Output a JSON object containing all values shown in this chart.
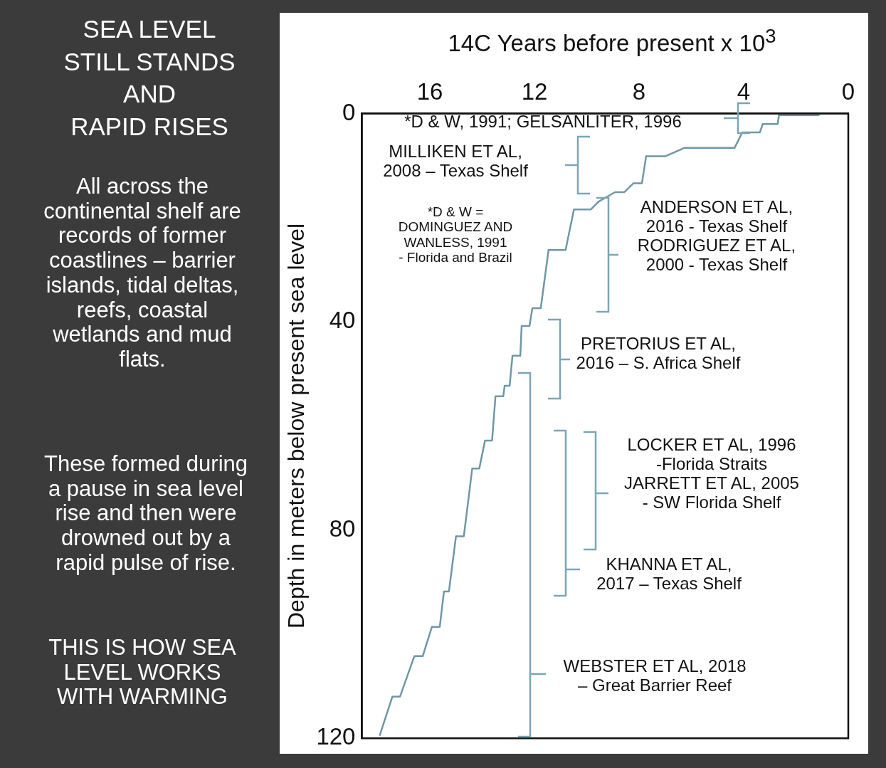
{
  "chart_data": {
    "type": "line",
    "title": "SEA LEVEL\nSTILL  STANDS\nAND\nRAPID  RISES",
    "xlabel": "14C Years before present x 10$^{3}$",
    "ylabel": "Depth in meters below present sea level",
    "x": [
      17.92,
      17.43,
      17.14,
      16.59,
      16.27,
      15.92,
      15.62,
      15.46,
      15.27,
      15.0,
      14.7,
      14.38,
      14.11,
      13.89,
      13.62,
      13.49,
      13.19,
      13.14,
      12.95,
      12.84,
      12.54,
      12.49,
      12.19,
      12.08,
      11.76,
      11.46,
      10.81,
      10.49,
      9.84,
      9.54,
      8.92,
      8.57,
      8.22,
      7.89,
      7.73,
      7.0,
      6.27,
      4.35,
      4.05,
      3.38,
      3.27,
      2.7,
      2.65,
      1.14,
      1.08,
      0
    ],
    "series": [
      {
        "color": "#6f97a6",
        "values": [
          119.5,
          112,
          112,
          104.2,
          104.2,
          98.6,
          98.6,
          91.8,
          91.8,
          81.2,
          81.2,
          68.2,
          68.2,
          62.8,
          62.8,
          54.3,
          54.3,
          52.3,
          52.3,
          46.5,
          46.5,
          40.8,
          40.8,
          37.4,
          37.4,
          26.2,
          26.2,
          18.4,
          18.4,
          16.9,
          15.1,
          15.1,
          13.4,
          13.4,
          8.2,
          8.2,
          6.6,
          6.6,
          3.6,
          3.6,
          2,
          2,
          0.3,
          0.3,
          0,
          0
        ]
      }
    ],
    "xlim": [
      18.6,
      0
    ],
    "xticks": [
      16,
      12,
      8,
      4,
      0
    ],
    "ylim": [
      120,
      0
    ],
    "yticks": [
      0,
      40,
      80,
      120
    ],
    "marker": "none",
    "line_style": "solid",
    "annotations": [
      "*D & W, 1991; GELSANLITER, 1996",
      "MILLIKEN ET AL,\n2008 – Texas Shelf",
      "*D & W =\nDOMINGUEZ AND\nWANLESS, 1991\n - Florida and  Brazil",
      "ANDERSON ET AL,\n2016 - Texas Shelf\nRODRIGUEZ ET AL,\n2000 - Texas Shelf",
      "PRETORIUS ET AL,\n2016 – S. Africa Shelf",
      "LOCKER ET AL, 1996\n-Florida Straits\nJARRETT ET AL, 2005\n- SW Florida Shelf",
      "KHANNA ET AL,\n2017 – Texas Shelf",
      "WEBSTER ET AL, 2018\n– Great Barrier Reef",
      "All across the\ncontinental shelf are\nrecords of former\ncoastlines – barrier\nislands, tidal deltas,\nreefs, coastal\nwetlands and mud\nflats.",
      "These formed during\na pause in sea level\nrise and then were\ndrowned out by a\nrapid pulse of rise.",
      "THIS IS HOW SEA\nLEVEL WORKS\nWITH WARMING"
    ]
  }
}
